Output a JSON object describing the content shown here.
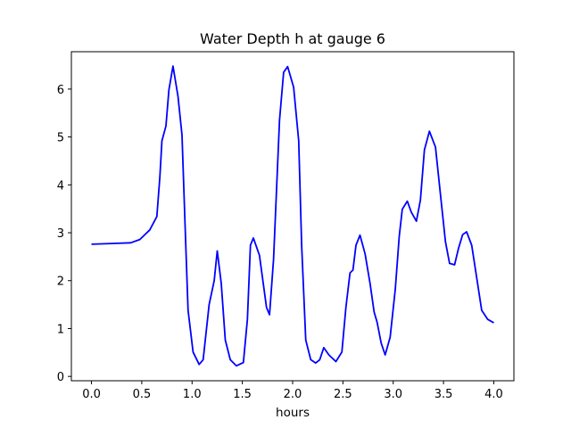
{
  "chart_data": {
    "type": "line",
    "title": "Water Depth h at gauge 6",
    "xlabel": "hours",
    "ylabel": "",
    "xlim": [
      -0.2,
      4.2
    ],
    "ylim": [
      -0.09,
      6.78
    ],
    "xticks": [
      0.0,
      0.5,
      1.0,
      1.5,
      2.0,
      2.5,
      3.0,
      3.5,
      4.0
    ],
    "xtick_labels": [
      "0.0",
      "0.5",
      "1.0",
      "1.5",
      "2.0",
      "2.5",
      "3.0",
      "3.5",
      "4.0"
    ],
    "yticks": [
      0,
      1,
      2,
      3,
      4,
      5,
      6
    ],
    "ytick_labels": [
      "0",
      "1",
      "2",
      "3",
      "4",
      "5",
      "6"
    ],
    "grid": false,
    "series": [
      {
        "name": "h",
        "color": "#0000ff",
        "x": [
          0.0,
          0.39,
          0.48,
          0.58,
          0.65,
          0.68,
          0.7,
          0.74,
          0.77,
          0.81,
          0.86,
          0.9,
          0.93,
          0.96,
          1.01,
          1.07,
          1.11,
          1.17,
          1.22,
          1.25,
          1.29,
          1.33,
          1.38,
          1.44,
          1.51,
          1.55,
          1.58,
          1.61,
          1.67,
          1.7,
          1.74,
          1.77,
          1.81,
          1.87,
          1.91,
          1.95,
          2.01,
          2.06,
          2.09,
          2.13,
          2.18,
          2.23,
          2.27,
          2.31,
          2.36,
          2.43,
          2.49,
          2.53,
          2.57,
          2.6,
          2.63,
          2.67,
          2.72,
          2.77,
          2.81,
          2.84,
          2.88,
          2.92,
          2.97,
          3.02,
          3.06,
          3.09,
          3.14,
          3.18,
          3.23,
          3.27,
          3.31,
          3.36,
          3.42,
          3.46,
          3.52,
          3.56,
          3.61,
          3.65,
          3.69,
          3.73,
          3.78,
          3.83,
          3.88,
          3.94,
          4.0
        ],
        "y": [
          2.76,
          2.79,
          2.86,
          3.06,
          3.34,
          4.17,
          4.92,
          5.23,
          5.98,
          6.48,
          5.85,
          5.04,
          3.18,
          1.38,
          0.51,
          0.25,
          0.35,
          1.5,
          2.0,
          2.62,
          1.94,
          0.76,
          0.35,
          0.22,
          0.29,
          1.19,
          2.74,
          2.89,
          2.53,
          2.06,
          1.44,
          1.29,
          2.44,
          5.35,
          6.35,
          6.47,
          6.04,
          4.92,
          2.74,
          0.76,
          0.35,
          0.28,
          0.35,
          0.6,
          0.45,
          0.31,
          0.51,
          1.44,
          2.16,
          2.22,
          2.74,
          2.95,
          2.56,
          1.94,
          1.35,
          1.13,
          0.7,
          0.45,
          0.82,
          1.81,
          2.93,
          3.49,
          3.66,
          3.43,
          3.24,
          3.68,
          4.73,
          5.12,
          4.79,
          3.99,
          2.81,
          2.36,
          2.33,
          2.68,
          2.96,
          3.02,
          2.74,
          2.06,
          1.38,
          1.19,
          1.12
        ]
      }
    ]
  }
}
